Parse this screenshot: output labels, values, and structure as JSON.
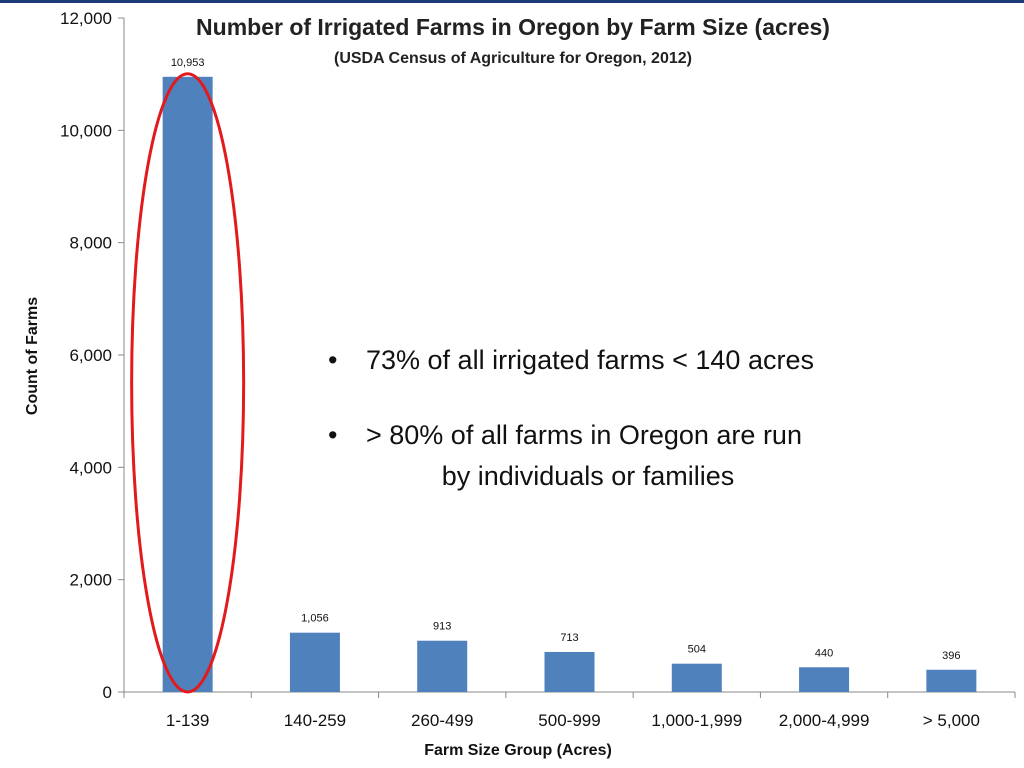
{
  "chart_data": {
    "type": "bar",
    "title": "Number of Irrigated Farms in Oregon by Farm Size (acres)",
    "subtitle": "(USDA Census of Agriculture for Oregon, 2012)",
    "xlabel": "Farm Size Group (Acres)",
    "ylabel": "Count of Farms",
    "categories": [
      "1-139",
      "140-259",
      "260-499",
      "500-999",
      "1,000-1,999",
      "2,000-4,999",
      "> 5,000"
    ],
    "values": [
      10953,
      1056,
      913,
      713,
      504,
      440,
      396
    ],
    "data_labels": [
      "10,953",
      "1,056",
      "913",
      "713",
      "504",
      "440",
      "396"
    ],
    "ylim": [
      0,
      12000
    ],
    "yticks": [
      0,
      2000,
      4000,
      6000,
      8000,
      10000,
      12000
    ],
    "ytick_labels": [
      "0",
      "2,000",
      "4,000",
      "6,000",
      "8,000",
      "10,000",
      "12,000"
    ],
    "grid": false,
    "bar_color": "#4f81bd",
    "highlight": {
      "category": "1-139",
      "shape": "ellipse",
      "color": "#e31a1c"
    }
  },
  "notes": {
    "bullet_1": "73% of all irrigated farms < 140 acres",
    "bullet_2_line1": "> 80% of all farms in Oregon are run",
    "bullet_2_line2": "by individuals or families"
  }
}
